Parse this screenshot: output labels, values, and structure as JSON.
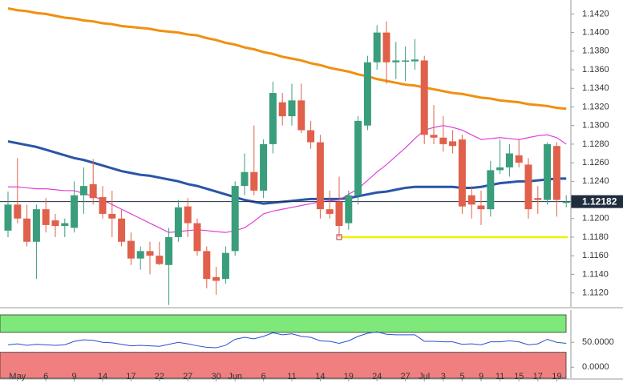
{
  "chart_data": {
    "type": "candlestick",
    "categories": [
      null,
      "May",
      null,
      null,
      "6",
      null,
      null,
      "9",
      null,
      null,
      "14",
      null,
      null,
      "17",
      null,
      null,
      "22",
      null,
      null,
      "27",
      null,
      null,
      "30",
      null,
      "Jun",
      null,
      null,
      "6",
      null,
      null,
      "11",
      null,
      null,
      "14",
      null,
      null,
      "19",
      null,
      null,
      "24",
      null,
      null,
      "27",
      null,
      "Jul",
      null,
      "3",
      null,
      "5",
      null,
      "9",
      null,
      "11",
      null,
      "15",
      null,
      "17",
      null,
      "19",
      null
    ],
    "open": [
      1.1187,
      1.1215,
      1.12,
      1.1175,
      1.121,
      1.1198,
      1.1192,
      1.119,
      1.1225,
      1.1237,
      1.1223,
      1.1205,
      1.12,
      1.1176,
      1.1157,
      1.1165,
      1.116,
      1.115,
      1.118,
      1.1213,
      1.1195,
      1.1165,
      1.1137,
      1.1135,
      1.1165,
      1.1235,
      1.125,
      1.123,
      1.128,
      1.1325,
      1.131,
      1.1327,
      1.1295,
      1.1282,
      1.121,
      1.1218,
      1.1195,
      1.1225,
      1.13,
      1.1368,
      1.14,
      1.1368,
      1.137,
      1.1369,
      1.137,
      1.129,
      1.1287,
      1.1283,
      1.1285,
      1.1225,
      1.1214,
      1.121,
      1.1252,
      1.1255,
      1.1268,
      1.1258,
      1.1222,
      1.122,
      1.1278,
      1.1218
    ],
    "high": [
      1.1229,
      1.1265,
      1.1215,
      1.1215,
      1.1222,
      1.1205,
      1.12,
      1.124,
      1.1255,
      1.1264,
      1.1235,
      1.123,
      1.121,
      1.1185,
      1.117,
      1.1175,
      1.1175,
      1.119,
      1.122,
      1.1222,
      1.12,
      1.117,
      1.1148,
      1.117,
      1.124,
      1.127,
      1.13,
      1.1285,
      1.1347,
      1.1335,
      1.1345,
      1.1345,
      1.1305,
      1.129,
      1.123,
      1.1245,
      1.123,
      1.131,
      1.1375,
      1.1408,
      1.1412,
      1.139,
      1.1385,
      1.1393,
      1.1375,
      1.1322,
      1.131,
      1.1295,
      1.129,
      1.1235,
      1.123,
      1.1262,
      1.1285,
      1.128,
      1.1285,
      1.1265,
      1.1235,
      1.1282,
      1.1282,
      1.1225
    ],
    "low": [
      1.118,
      1.1195,
      1.117,
      1.1135,
      1.1185,
      1.118,
      1.118,
      1.1185,
      1.1205,
      1.1215,
      1.12,
      1.118,
      1.117,
      1.115,
      1.1145,
      1.114,
      1.115,
      1.1107,
      1.1175,
      1.118,
      1.116,
      1.1125,
      1.1118,
      1.113,
      1.116,
      1.1225,
      1.1225,
      1.1222,
      1.127,
      1.13,
      1.13,
      1.1292,
      1.1275,
      1.12,
      1.12,
      1.118,
      1.1188,
      1.1215,
      1.1295,
      1.136,
      1.1345,
      1.135,
      1.1348,
      1.136,
      1.128,
      1.128,
      1.1272,
      1.127,
      1.1205,
      1.12,
      1.1193,
      1.1202,
      1.1248,
      1.1245,
      1.1255,
      1.12,
      1.1205,
      1.1215,
      1.1202,
      1.1212
    ],
    "close": [
      1.1215,
      1.12,
      1.1175,
      1.121,
      1.1193,
      1.1192,
      1.1195,
      1.1225,
      1.1235,
      1.1222,
      1.1205,
      1.12,
      1.1175,
      1.1157,
      1.1165,
      1.116,
      1.1151,
      1.118,
      1.1212,
      1.1195,
      1.1165,
      1.1135,
      1.1133,
      1.1163,
      1.1235,
      1.125,
      1.123,
      1.128,
      1.1335,
      1.131,
      1.1327,
      1.1295,
      1.1282,
      1.121,
      1.1205,
      1.1192,
      1.1225,
      1.1305,
      1.1368,
      1.14,
      1.1368,
      1.137,
      1.137,
      1.1371,
      1.129,
      1.1287,
      1.128,
      1.1278,
      1.1213,
      1.1215,
      1.121,
      1.1252,
      1.1255,
      1.127,
      1.126,
      1.121,
      1.122,
      1.128,
      1.122,
      1.1218
    ],
    "up_color": "#3a9d7c",
    "down_color": "#e0604b",
    "lines": [
      {
        "color": "#f0900f",
        "values": [
          1.1426,
          1.1424,
          1.1423,
          1.1421,
          1.142,
          1.1418,
          1.1416,
          1.1415,
          1.1413,
          1.1412,
          1.141,
          1.1409,
          1.1407,
          1.1406,
          1.1405,
          1.1404,
          1.1402,
          1.1401,
          1.14,
          1.1398,
          1.1397,
          1.1394,
          1.1392,
          1.1389,
          1.1387,
          1.1384,
          1.1382,
          1.1379,
          1.1377,
          1.1374,
          1.1372,
          1.137,
          1.1367,
          1.1365,
          1.1362,
          1.136,
          1.1358,
          1.1355,
          1.1353,
          1.135,
          1.1348,
          1.1346,
          1.1344,
          1.1343,
          1.1341,
          1.1339,
          1.1337,
          1.1335,
          1.1334,
          1.1332,
          1.133,
          1.1329,
          1.1327,
          1.1326,
          1.1325,
          1.1323,
          1.1322,
          1.1321,
          1.1319,
          1.1318
        ]
      },
      {
        "color": "#2a55a8",
        "values": [
          1.1283,
          1.1281,
          1.1279,
          1.1277,
          1.1274,
          1.1271,
          1.1268,
          1.1265,
          1.1263,
          1.126,
          1.1257,
          1.1254,
          1.1251,
          1.1249,
          1.1247,
          1.1246,
          1.1244,
          1.1242,
          1.124,
          1.1237,
          1.1235,
          1.1232,
          1.1229,
          1.1226,
          1.1223,
          1.122,
          1.1218,
          1.1216,
          1.1217,
          1.1218,
          1.1219,
          1.122,
          1.1221,
          1.1221,
          1.1221,
          1.1221,
          1.1222,
          1.1224,
          1.1226,
          1.1228,
          1.1229,
          1.1231,
          1.1233,
          1.1234,
          1.1234,
          1.1234,
          1.1234,
          1.1234,
          1.1233,
          1.1233,
          1.1234,
          1.1236,
          1.1238,
          1.1239,
          1.124,
          1.124,
          1.1241,
          1.1242,
          1.1243,
          1.1243
        ]
      },
      {
        "color": "#e040d8",
        "values": [
          1.1234,
          1.1234,
          1.1233,
          1.1232,
          1.1232,
          1.1231,
          1.123,
          1.123,
          1.1227,
          1.1224,
          1.122,
          1.1215,
          1.121,
          1.1205,
          1.12,
          1.1195,
          1.119,
          1.1185,
          1.1186,
          1.1187,
          1.1188,
          1.1187,
          1.1186,
          1.1185,
          1.1187,
          1.119,
          1.1197,
          1.1205,
          1.1208,
          1.121,
          1.1212,
          1.1214,
          1.1216,
          1.1218,
          1.1219,
          1.122,
          1.1226,
          1.1232,
          1.1241,
          1.125,
          1.1258,
          1.1267,
          1.1276,
          1.1286,
          1.1295,
          1.1298,
          1.13,
          1.1298,
          1.1295,
          1.129,
          1.1285,
          1.1286,
          1.1287,
          1.1286,
          1.1285,
          1.1287,
          1.1289,
          1.129,
          1.1287,
          1.128
        ]
      }
    ],
    "support_level": 1.118,
    "support_color": "#f0f000",
    "last_price": 1.12182,
    "ylim": [
      1.1105,
      1.1435
    ],
    "yticks": [
      {
        "value": 1.112,
        "label": "1.1120"
      },
      {
        "value": 1.114,
        "label": "1.1140"
      },
      {
        "value": 1.116,
        "label": "1.1160"
      },
      {
        "value": 1.118,
        "label": "1.1180"
      },
      {
        "value": 1.12,
        "label": "1.1200"
      },
      {
        "value": 1.122,
        "label": "1.1220"
      },
      {
        "value": 1.124,
        "label": "1.1240"
      },
      {
        "value": 1.126,
        "label": "1.1260"
      },
      {
        "value": 1.128,
        "label": "1.1280"
      },
      {
        "value": 1.13,
        "label": "1.1300"
      },
      {
        "value": 1.132,
        "label": "1.1320"
      },
      {
        "value": 1.134,
        "label": "1.1340"
      },
      {
        "value": 1.136,
        "label": "1.1360"
      },
      {
        "value": 1.138,
        "label": "1.1380"
      },
      {
        "value": 1.14,
        "label": "1.1400"
      },
      {
        "value": 1.142,
        "label": "1.1420"
      }
    ],
    "rsi": {
      "color": "#2a4fd0",
      "values": [
        45,
        47,
        44,
        46,
        45,
        44,
        45,
        52,
        55,
        54,
        50,
        49,
        46,
        43,
        44,
        43,
        42,
        46,
        50,
        47,
        43,
        40,
        39,
        44,
        56,
        60,
        57,
        62,
        69,
        65,
        67,
        62,
        60,
        53,
        52,
        48,
        53,
        62,
        68,
        71,
        66,
        65,
        65,
        65,
        52,
        52,
        51,
        51,
        46,
        47,
        45,
        51,
        51,
        53,
        51,
        45,
        47,
        56,
        50,
        48
      ],
      "ylim": [
        -22,
        105
      ],
      "yticks": [
        {
          "value": 0,
          "label": "0.0000"
        },
        {
          "value": 50,
          "label": "50.0000"
        }
      ],
      "overbought": 70,
      "oversold": 30,
      "overbought_color": "#7ee87a",
      "oversold_color": "#f08080"
    }
  }
}
